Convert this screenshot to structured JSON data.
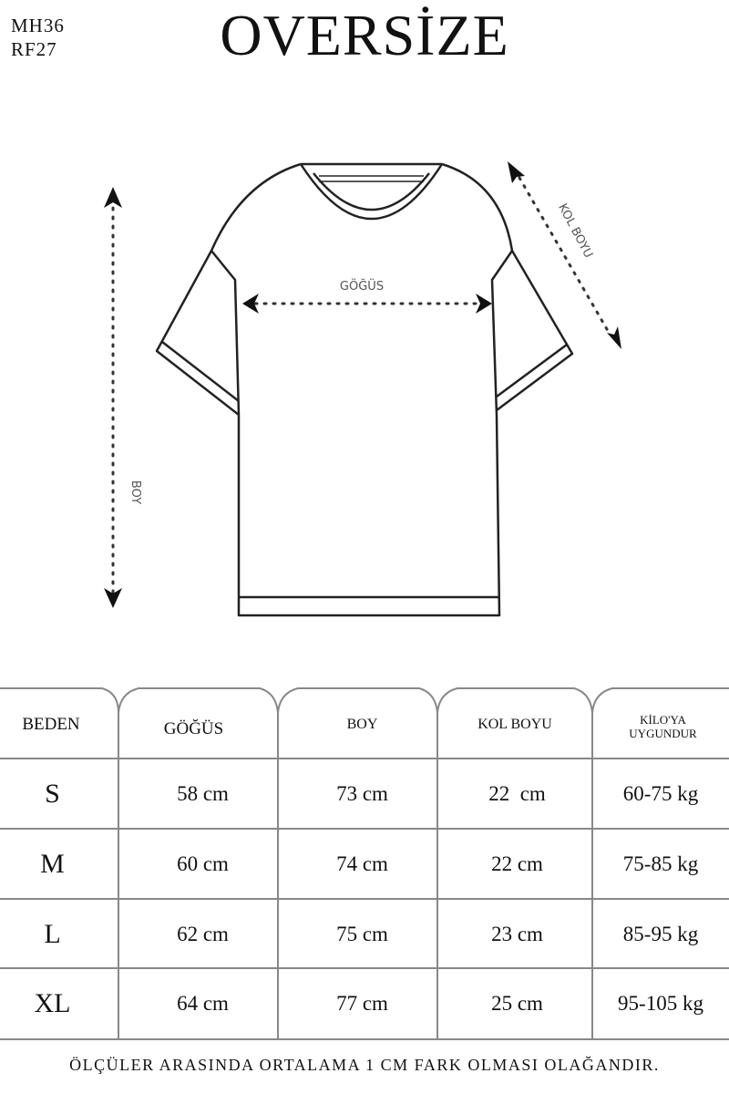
{
  "codes": [
    "MH36",
    "RF27"
  ],
  "title": "OVERSİZE",
  "diagram": {
    "chest_label": "GÖĞÜS",
    "length_label": "BOY",
    "sleeve_label": "KOL BOYU"
  },
  "table": {
    "headers": [
      "BEDEN",
      "GÖĞÜS",
      "BOY",
      "KOL BOYU",
      "KİLO'YA UYGUNDUR"
    ],
    "rows": [
      [
        "S",
        "58 cm",
        "73 cm",
        "22  cm",
        "60-75 kg"
      ],
      [
        "M",
        "60 cm",
        "74 cm",
        "22 cm",
        "75-85 kg"
      ],
      [
        "L",
        "62 cm",
        "75 cm",
        "23 cm",
        "85-95 kg"
      ],
      [
        "XL",
        "64 cm",
        "77 cm",
        "25 cm",
        "95-105 kg"
      ]
    ]
  },
  "footer": "ÖLÇÜLER ARASINDA ORTALAMA 1 CM FARK OLMASI OLAĞANDIR."
}
